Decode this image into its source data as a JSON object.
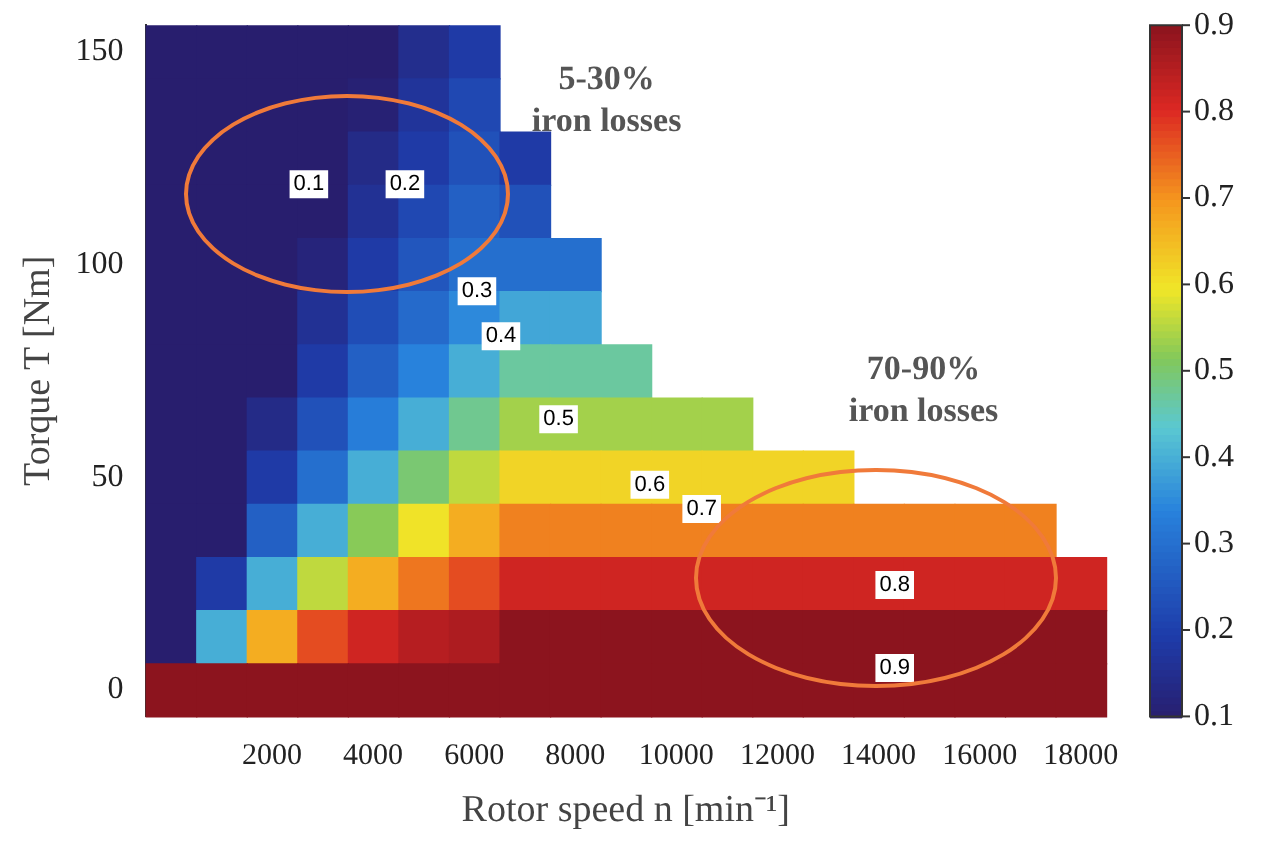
{
  "chart_data": {
    "type": "heatmap",
    "xlabel": "Rotor speed n [min⁻¹]",
    "ylabel": "Torque T [Nm]",
    "categories": [
      null,
      null,
      "2000",
      null,
      "4000",
      null,
      "6000",
      null,
      "8000",
      null,
      "10000",
      null,
      "12000",
      null,
      "14000",
      null,
      "16000",
      null,
      "18000"
    ],
    "y_categories": [
      "150",
      null,
      null,
      null,
      "100",
      null,
      null,
      null,
      "50",
      null,
      null,
      null,
      "0"
    ],
    "cells": [
      [
        0.1,
        0.1,
        0.1,
        0.1,
        0.1,
        0.15,
        0.19,
        null,
        null,
        null,
        null,
        null,
        null,
        null,
        null,
        null,
        null,
        null,
        null
      ],
      [
        0.1,
        0.1,
        0.1,
        0.1,
        0.11,
        0.17,
        0.22,
        null,
        null,
        null,
        null,
        null,
        null,
        null,
        null,
        null,
        null,
        null,
        null
      ],
      [
        0.1,
        0.1,
        0.1,
        0.1,
        0.14,
        0.19,
        0.24,
        0.19,
        null,
        null,
        null,
        null,
        null,
        null,
        null,
        null,
        null,
        null,
        null
      ],
      [
        0.1,
        0.1,
        0.1,
        0.1,
        0.16,
        0.22,
        0.27,
        0.24,
        null,
        null,
        null,
        null,
        null,
        null,
        null,
        null,
        null,
        null,
        null
      ],
      [
        0.1,
        0.1,
        0.1,
        0.12,
        0.19,
        0.25,
        0.3,
        0.3,
        0.3,
        null,
        null,
        null,
        null,
        null,
        null,
        null,
        null,
        null,
        null
      ],
      [
        0.1,
        0.1,
        0.1,
        0.16,
        0.23,
        0.29,
        0.35,
        0.39,
        0.39,
        null,
        null,
        null,
        null,
        null,
        null,
        null,
        null,
        null,
        null
      ],
      [
        0.1,
        0.1,
        0.1,
        0.19,
        0.27,
        0.34,
        0.4,
        0.47,
        0.47,
        0.47,
        null,
        null,
        null,
        null,
        null,
        null,
        null,
        null,
        null
      ],
      [
        0.1,
        0.1,
        0.14,
        0.24,
        0.33,
        0.4,
        0.48,
        0.54,
        0.54,
        0.54,
        0.54,
        0.54,
        null,
        null,
        null,
        null,
        null,
        null,
        null
      ],
      [
        0.1,
        0.1,
        0.19,
        0.3,
        0.4,
        0.5,
        0.56,
        0.62,
        0.62,
        0.62,
        0.62,
        0.62,
        0.62,
        0.62,
        null,
        null,
        null,
        null,
        null
      ],
      [
        0.1,
        0.1,
        0.27,
        0.4,
        0.52,
        0.6,
        0.67,
        0.72,
        0.72,
        0.72,
        0.72,
        0.72,
        0.72,
        0.72,
        0.72,
        0.72,
        0.72,
        0.72,
        null
      ],
      [
        0.1,
        0.19,
        0.4,
        0.56,
        0.67,
        0.73,
        0.77,
        0.82,
        0.82,
        0.82,
        0.82,
        0.82,
        0.82,
        0.82,
        0.82,
        0.82,
        0.82,
        0.82,
        0.82
      ],
      [
        0.1,
        0.4,
        0.67,
        0.77,
        0.82,
        0.85,
        0.86,
        0.9,
        0.9,
        0.9,
        0.9,
        0.9,
        0.9,
        0.9,
        0.9,
        0.9,
        0.9,
        0.9,
        0.9
      ],
      [
        0.9,
        0.9,
        0.9,
        0.9,
        0.9,
        0.9,
        0.9,
        0.9,
        0.9,
        0.9,
        0.9,
        0.9,
        0.9,
        0.9,
        0.9,
        0.9,
        0.9,
        0.9,
        0.9
      ]
    ],
    "clim": [
      0.1,
      0.9
    ],
    "cticks": [
      0.1,
      0.2,
      0.3,
      0.4,
      0.5,
      0.6,
      0.7,
      0.8,
      0.9
    ],
    "annotations": [
      "0.1",
      "0.2",
      "0.3",
      "0.4",
      "0.5",
      "0.6",
      "0.7",
      "0.8",
      "0.9",
      "5-30%\niron losses",
      "70-90%\niron losses"
    ]
  }
}
